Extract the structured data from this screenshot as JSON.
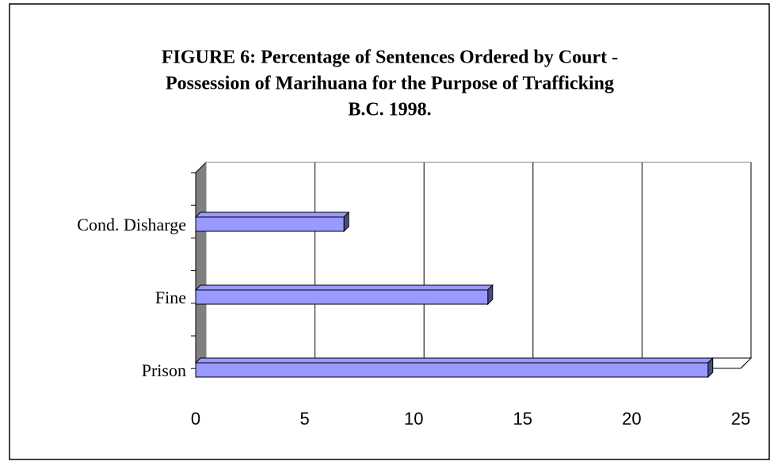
{
  "chart_data": {
    "type": "bar",
    "orientation": "horizontal",
    "title": [
      "FIGURE 6: Percentage of Sentences Ordered by Court -",
      "Possession of Marihuana for the Purpose of Trafficking",
      "B.C. 1998."
    ],
    "categories": [
      "Prison",
      "Fine",
      "Cond. Disharge"
    ],
    "values": [
      23.5,
      13.4,
      6.8
    ],
    "color": "#9999ff",
    "xlim": [
      0,
      25
    ],
    "xticks": [
      0,
      5,
      10,
      15,
      20,
      25
    ],
    "grid": true
  }
}
